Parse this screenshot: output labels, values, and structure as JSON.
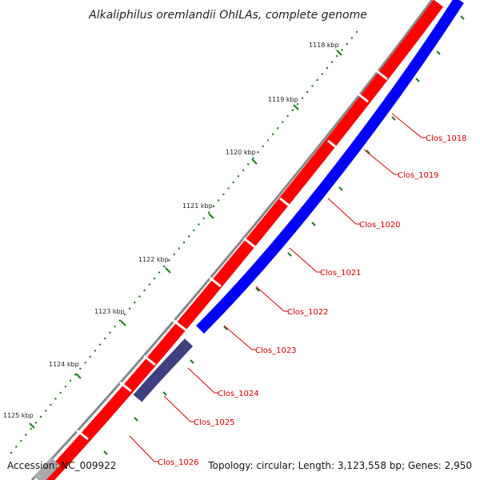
{
  "title": "Alkaliphilus oremlandii OhILAs, complete genome",
  "accession_text": "Accession: NC_009922",
  "topology_text": "Topology: circular; Length: 3,123,558 bp; Genes: 2,950",
  "kbp_labels": [
    "1118 kbp",
    "1119 kbp",
    "1120 kbp",
    "1121 kbp",
    "1122 kbp",
    "1123 kbp",
    "1124 kbp",
    "1125 kbp"
  ],
  "gene_labels": [
    "Clos_1018",
    "Clos_1019",
    "Clos_1020",
    "Clos_1021",
    "Clos_1022",
    "Clos_1023",
    "Clos_1024",
    "Clos_1025",
    "Clos_1026"
  ],
  "colors": {
    "forward_cds": "#ff0000",
    "reverse_cds": "#0000ff",
    "reverse_pseudo": "#404080",
    "backbone": "#777777",
    "ticks": "#1a7a1a",
    "label_line": "#cc0000"
  }
}
